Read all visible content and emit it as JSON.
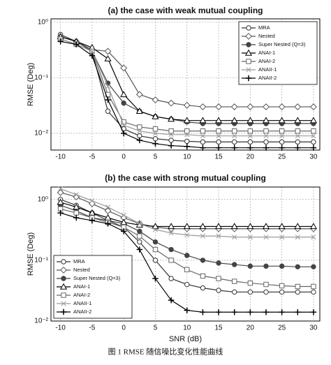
{
  "caption": "图 1 RMSE 随信噪比变化性能曲线",
  "chart_data": [
    {
      "type": "line",
      "title": "(a) the case with weak mutual coupling",
      "ylabel": "RMSE (Deg)",
      "x": [
        -10,
        -7.5,
        -5,
        -2.5,
        0,
        2.5,
        5,
        7.5,
        10,
        12.5,
        15,
        17.5,
        20,
        22.5,
        25,
        27.5,
        30
      ],
      "xlim": [
        -11.5,
        31
      ],
      "xticks": [
        -10,
        -5,
        0,
        5,
        10,
        15,
        20,
        25,
        30
      ],
      "ylim": [
        0.005,
        1.15
      ],
      "log_y": true,
      "yticks": [
        {
          "value": 0.01,
          "label": "10⁻²"
        },
        {
          "value": 0.1,
          "label": "10⁻¹"
        },
        {
          "value": 1,
          "label": "10⁰"
        }
      ],
      "grid": true,
      "legend": "upper right",
      "series": [
        {
          "name": "MRA",
          "color": "#333333",
          "marker": "circle",
          "values": [
            0.6,
            0.45,
            0.3,
            0.025,
            0.012,
            0.009,
            0.008,
            0.0075,
            0.0072,
            0.007,
            0.007,
            0.007,
            0.007,
            0.007,
            0.007,
            0.007,
            0.007
          ]
        },
        {
          "name": "Nested",
          "color": "#555555",
          "marker": "diamond",
          "values": [
            0.55,
            0.45,
            0.32,
            0.3,
            0.15,
            0.05,
            0.04,
            0.035,
            0.032,
            0.03,
            0.03,
            0.03,
            0.03,
            0.03,
            0.03,
            0.03,
            0.03
          ]
        },
        {
          "name": "Super Nested (Q=3)",
          "color": "#444444",
          "marker": "star",
          "values": [
            0.5,
            0.4,
            0.3,
            0.08,
            0.035,
            0.025,
            0.02,
            0.018,
            0.016,
            0.015,
            0.015,
            0.015,
            0.015,
            0.015,
            0.015,
            0.015,
            0.015
          ]
        },
        {
          "name": "ANAI-1",
          "color": "#000000",
          "marker": "triangle",
          "values": [
            0.55,
            0.45,
            0.35,
            0.22,
            0.05,
            0.025,
            0.02,
            0.018,
            0.017,
            0.017,
            0.017,
            0.017,
            0.017,
            0.017,
            0.017,
            0.017,
            0.017
          ]
        },
        {
          "name": "ANAI-2",
          "color": "#666666",
          "marker": "square",
          "values": [
            0.5,
            0.4,
            0.3,
            0.05,
            0.016,
            0.013,
            0.012,
            0.011,
            0.011,
            0.011,
            0.011,
            0.011,
            0.011,
            0.011,
            0.011,
            0.011,
            0.011
          ]
        },
        {
          "name": "ANAII-1",
          "color": "#999999",
          "marker": "x",
          "values": [
            0.5,
            0.4,
            0.3,
            0.07,
            0.014,
            0.011,
            0.01,
            0.0095,
            0.0095,
            0.009,
            0.009,
            0.009,
            0.009,
            0.009,
            0.009,
            0.009,
            0.009
          ]
        },
        {
          "name": "ANAII-2",
          "color": "#000000",
          "marker": "plus",
          "values": [
            0.45,
            0.4,
            0.25,
            0.04,
            0.01,
            0.0075,
            0.0065,
            0.006,
            0.0058,
            0.0055,
            0.0055,
            0.0055,
            0.0055,
            0.0055,
            0.0055,
            0.0055,
            0.0055
          ]
        }
      ]
    },
    {
      "type": "line",
      "title": "(b) the case with strong mutual coupling",
      "ylabel": "RMSE (Deg)",
      "xlabel": "SNR (dB)",
      "x": [
        -10,
        -7.5,
        -5,
        -2.5,
        0,
        2.5,
        5,
        7.5,
        10,
        12.5,
        15,
        17.5,
        20,
        22.5,
        25,
        27.5,
        30
      ],
      "xlim": [
        -11.5,
        31
      ],
      "xticks": [
        -10,
        -5,
        0,
        5,
        10,
        15,
        20,
        25,
        30
      ],
      "ylim": [
        0.01,
        1.6
      ],
      "log_y": true,
      "yticks": [
        {
          "value": 0.01,
          "label": "10⁻²"
        },
        {
          "value": 0.1,
          "label": "10⁻¹"
        },
        {
          "value": 1,
          "label": "10⁰"
        }
      ],
      "grid": true,
      "legend": "lower left",
      "series": [
        {
          "name": "MRA",
          "color": "#333333",
          "marker": "circle",
          "values": [
            1.0,
            0.8,
            0.6,
            0.45,
            0.35,
            0.2,
            0.1,
            0.05,
            0.04,
            0.035,
            0.032,
            0.03,
            0.03,
            0.03,
            0.03,
            0.03,
            0.03
          ]
        },
        {
          "name": "Nested",
          "color": "#555555",
          "marker": "diamond",
          "values": [
            1.3,
            1.1,
            0.85,
            0.65,
            0.5,
            0.4,
            0.35,
            0.33,
            0.33,
            0.33,
            0.33,
            0.33,
            0.33,
            0.33,
            0.33,
            0.33,
            0.33
          ]
        },
        {
          "name": "Super Nested (Q=3)",
          "color": "#444444",
          "marker": "star",
          "values": [
            0.8,
            0.65,
            0.5,
            0.45,
            0.4,
            0.3,
            0.2,
            0.15,
            0.12,
            0.1,
            0.09,
            0.085,
            0.08,
            0.08,
            0.08,
            0.078,
            0.078
          ]
        },
        {
          "name": "ANAI-1",
          "color": "#000000",
          "marker": "triangle",
          "values": [
            0.9,
            0.75,
            0.6,
            0.5,
            0.42,
            0.38,
            0.36,
            0.36,
            0.36,
            0.36,
            0.36,
            0.36,
            0.36,
            0.36,
            0.36,
            0.36,
            0.36
          ]
        },
        {
          "name": "ANAI-2",
          "color": "#666666",
          "marker": "square",
          "values": [
            0.7,
            0.6,
            0.5,
            0.42,
            0.35,
            0.25,
            0.15,
            0.1,
            0.07,
            0.055,
            0.05,
            0.045,
            0.042,
            0.04,
            0.038,
            0.037,
            0.037
          ]
        },
        {
          "name": "ANAII-1",
          "color": "#999999",
          "marker": "x",
          "values": [
            1.5,
            1.2,
            0.95,
            0.75,
            0.55,
            0.4,
            0.32,
            0.28,
            0.26,
            0.25,
            0.25,
            0.24,
            0.24,
            0.24,
            0.24,
            0.24,
            0.24
          ]
        },
        {
          "name": "ANAII-2",
          "color": "#000000",
          "marker": "plus",
          "values": [
            0.6,
            0.5,
            0.45,
            0.4,
            0.3,
            0.15,
            0.05,
            0.022,
            0.015,
            0.014,
            0.014,
            0.014,
            0.014,
            0.014,
            0.014,
            0.014,
            0.014
          ]
        }
      ]
    }
  ]
}
